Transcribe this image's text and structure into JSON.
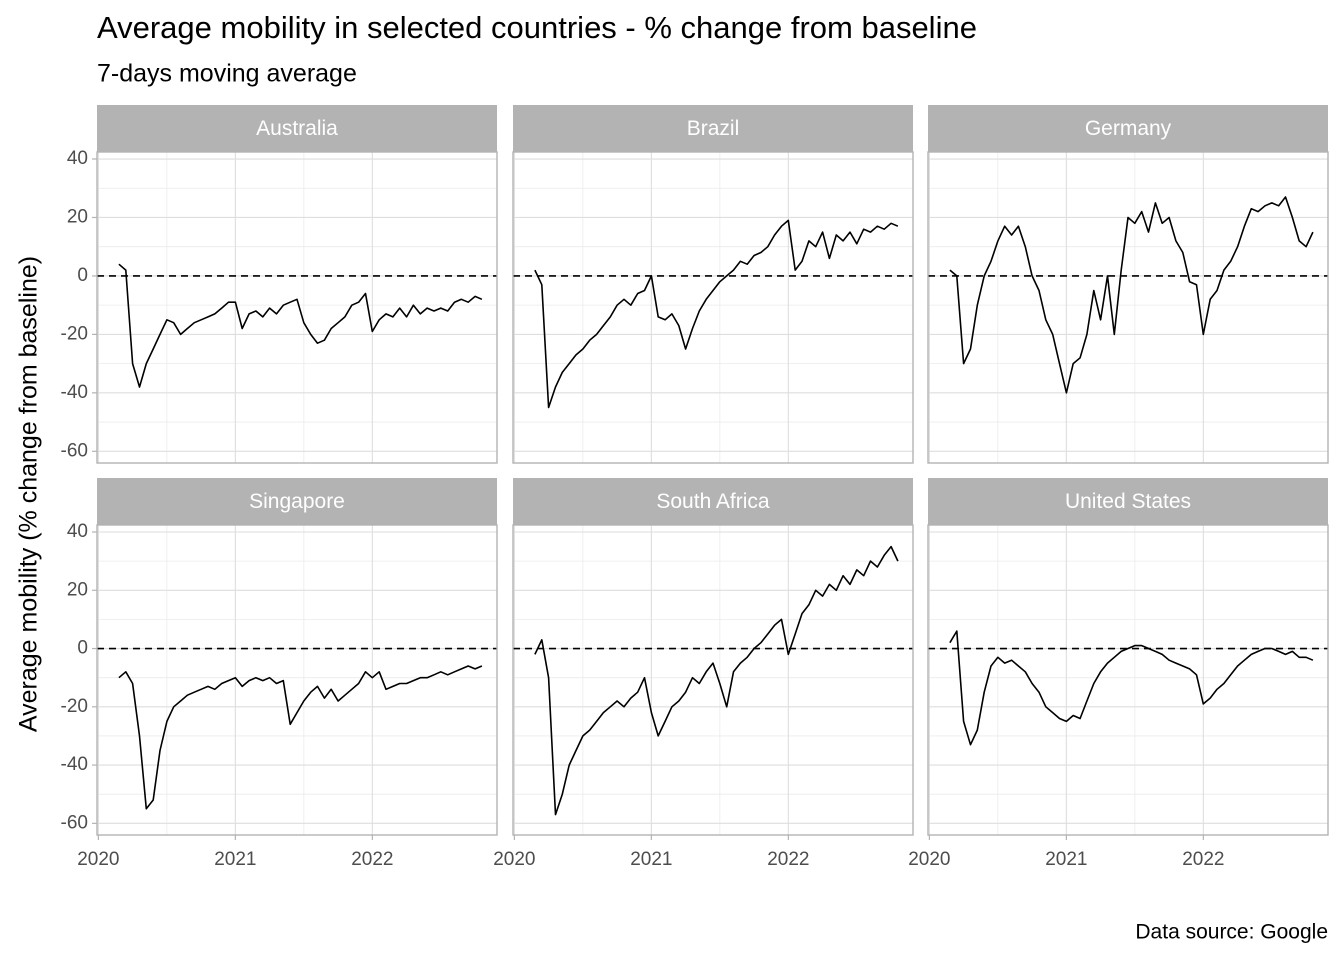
{
  "chart_data": {
    "type": "line",
    "title": "Average mobility in selected countries - % change from baseline",
    "subtitle": "7-days moving average",
    "y_label": "Average mobility (% change from baseline)",
    "caption": "Data source: Google",
    "color": "#000000",
    "reference_line": 0,
    "grid": true,
    "xlim": [
      2019.99,
      2022.91
    ],
    "xticks": [
      2020,
      2021,
      2022
    ],
    "ylim": [
      -64,
      42.4
    ],
    "yticks": [
      -60,
      -40,
      -20,
      0,
      20,
      40
    ],
    "x": [
      2020.15,
      2020.2,
      2020.25,
      2020.3,
      2020.35,
      2020.4,
      2020.45,
      2020.5,
      2020.55,
      2020.6,
      2020.65,
      2020.7,
      2020.75,
      2020.8,
      2020.85,
      2020.9,
      2020.95,
      2021.0,
      2021.05,
      2021.1,
      2021.15,
      2021.2,
      2021.25,
      2021.3,
      2021.35,
      2021.4,
      2021.45,
      2021.5,
      2021.55,
      2021.6,
      2021.65,
      2021.7,
      2021.75,
      2021.8,
      2021.85,
      2021.9,
      2021.95,
      2022.0,
      2022.05,
      2022.1,
      2022.15,
      2022.2,
      2022.25,
      2022.3,
      2022.35,
      2022.4,
      2022.45,
      2022.5,
      2022.55,
      2022.6,
      2022.65,
      2022.7,
      2022.75,
      2022.8
    ],
    "panels": [
      {
        "name": "Australia",
        "values": [
          4,
          2,
          -30,
          -38,
          -30,
          -25,
          -20,
          -15,
          -16,
          -20,
          -18,
          -16,
          -15,
          -14,
          -13,
          -11,
          -9,
          -9,
          -18,
          -13,
          -12,
          -14,
          -11,
          -13,
          -10,
          -9,
          -8,
          -16,
          -20,
          -23,
          -22,
          -18,
          -16,
          -14,
          -10,
          -9,
          -6,
          -19,
          -15,
          -13,
          -14,
          -11,
          -14,
          -10,
          -13,
          -11,
          -12,
          -11,
          -12,
          -9,
          -8,
          -9,
          -7,
          -8
        ]
      },
      {
        "name": "Brazil",
        "values": [
          2,
          -3,
          -45,
          -38,
          -33,
          -30,
          -27,
          -25,
          -22,
          -20,
          -17,
          -14,
          -10,
          -8,
          -10,
          -6,
          -5,
          0,
          -14,
          -15,
          -13,
          -17,
          -25,
          -18,
          -12,
          -8,
          -5,
          -2,
          0,
          2,
          5,
          4,
          7,
          8,
          10,
          14,
          17,
          19,
          2,
          5,
          12,
          10,
          15,
          6,
          14,
          12,
          15,
          11,
          16,
          15,
          17,
          16,
          18,
          17
        ]
      },
      {
        "name": "Germany",
        "values": [
          2,
          0,
          -30,
          -25,
          -10,
          0,
          5,
          12,
          17,
          14,
          17,
          10,
          0,
          -5,
          -15,
          -20,
          -30,
          -40,
          -30,
          -28,
          -20,
          -5,
          -15,
          0,
          -20,
          2,
          20,
          18,
          22,
          15,
          25,
          18,
          20,
          12,
          8,
          -2,
          -3,
          -20,
          -8,
          -5,
          2,
          5,
          10,
          17,
          23,
          22,
          24,
          25,
          24,
          27,
          20,
          12,
          10,
          15
        ]
      },
      {
        "name": "Singapore",
        "values": [
          -10,
          -8,
          -12,
          -30,
          -55,
          -52,
          -35,
          -25,
          -20,
          -18,
          -16,
          -15,
          -14,
          -13,
          -14,
          -12,
          -11,
          -10,
          -13,
          -11,
          -10,
          -11,
          -10,
          -12,
          -11,
          -26,
          -22,
          -18,
          -15,
          -13,
          -17,
          -14,
          -18,
          -16,
          -14,
          -12,
          -8,
          -10,
          -8,
          -14,
          -13,
          -12,
          -12,
          -11,
          -10,
          -10,
          -9,
          -8,
          -9,
          -8,
          -7,
          -6,
          -7,
          -6
        ]
      },
      {
        "name": "South Africa",
        "values": [
          -2,
          3,
          -10,
          -57,
          -50,
          -40,
          -35,
          -30,
          -28,
          -25,
          -22,
          -20,
          -18,
          -20,
          -17,
          -15,
          -10,
          -22,
          -30,
          -25,
          -20,
          -18,
          -15,
          -10,
          -12,
          -8,
          -5,
          -12,
          -20,
          -8,
          -5,
          -3,
          0,
          2,
          5,
          8,
          10,
          -2,
          5,
          12,
          15,
          20,
          18,
          22,
          20,
          25,
          22,
          27,
          25,
          30,
          28,
          32,
          35,
          30
        ]
      },
      {
        "name": "United States",
        "values": [
          2,
          6,
          -25,
          -33,
          -28,
          -15,
          -6,
          -3,
          -5,
          -4,
          -6,
          -8,
          -12,
          -15,
          -20,
          -22,
          -24,
          -25,
          -23,
          -24,
          -18,
          -12,
          -8,
          -5,
          -3,
          -1,
          0,
          1,
          1,
          0,
          -1,
          -2,
          -4,
          -5,
          -6,
          -7,
          -9,
          -19,
          -17,
          -14,
          -12,
          -9,
          -6,
          -4,
          -2,
          -1,
          0,
          0,
          -1,
          -2,
          -1,
          -3,
          -3,
          -4
        ]
      }
    ]
  }
}
